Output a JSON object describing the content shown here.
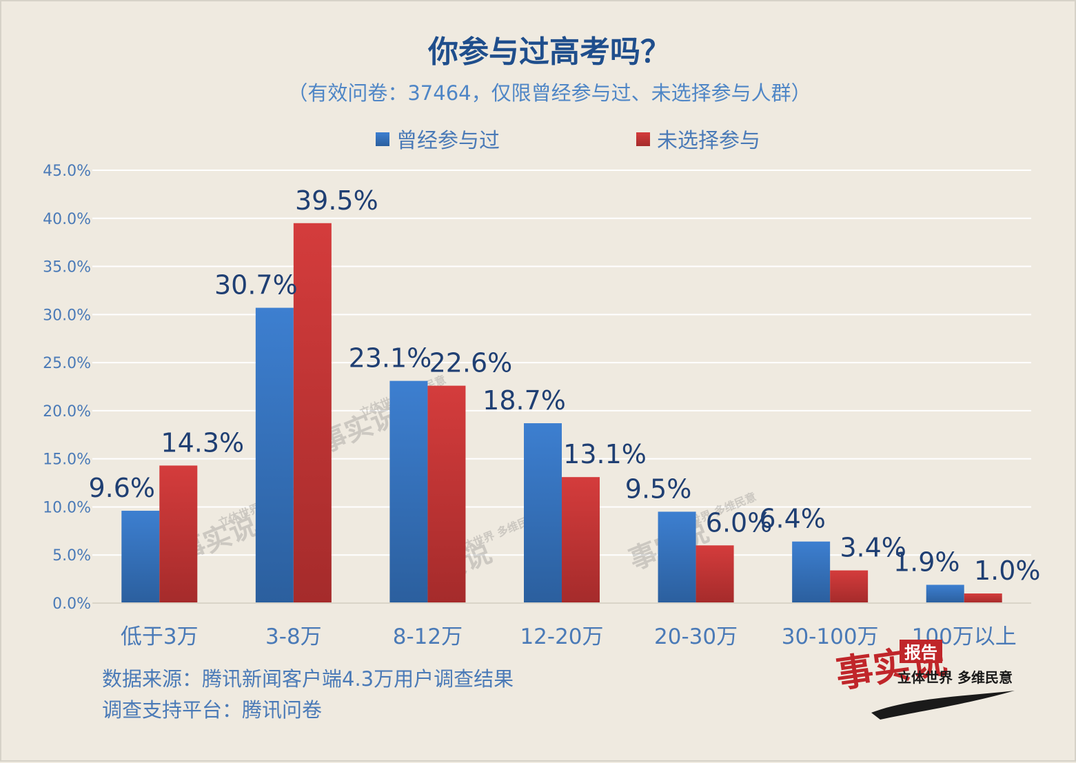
{
  "chart_data": {
    "type": "bar",
    "title": "你参与过高考吗？",
    "subtitle": "（有效问卷：37464，仅限曾经参与过、未选择参与人群）",
    "categories": [
      "低于3万",
      "3-8万",
      "8-12万",
      "12-20万",
      "20-30万",
      "30-100万",
      "100万以上"
    ],
    "series": [
      {
        "name": "曾经参与过",
        "color": "#3a78c9",
        "values": [
          9.6,
          30.7,
          23.1,
          18.7,
          9.5,
          6.4,
          1.9
        ],
        "labels": [
          "9.6%",
          "30.7%",
          "23.1%",
          "18.7%",
          "9.5%",
          "6.4%",
          "1.9%"
        ]
      },
      {
        "name": "未选择参与",
        "color": "#cd3b3b",
        "values": [
          14.3,
          39.5,
          22.6,
          13.1,
          6.0,
          3.4,
          1.0
        ],
        "labels": [
          "14.3%",
          "39.5%",
          "22.6%",
          "13.1%",
          "6.0%",
          "3.4%",
          "1.0%"
        ]
      }
    ],
    "yticks": [
      "0.0%",
      "5.0%",
      "10.0%",
      "15.0%",
      "20.0%",
      "25.0%",
      "30.0%",
      "35.0%",
      "40.0%",
      "45.0%"
    ],
    "ylim": [
      0,
      45
    ],
    "ylabel": "",
    "xlabel": "",
    "grid": true,
    "legend_position": "top-center"
  },
  "colors": {
    "title": "#1f4e8c",
    "subtitle": "#4f86c6",
    "axis_text": "#4a7ab7",
    "data_label": "#1f3f73",
    "grid": "#ffffff",
    "background": "#efeae0"
  },
  "footnotes": {
    "source": "数据来源：腾讯新闻客户端4.3万用户调查结果",
    "platform": "调查支持平台：腾讯问卷"
  },
  "logo": {
    "brand": "事实说",
    "badge": "报告",
    "slogan": "立体世界 多维民意"
  }
}
